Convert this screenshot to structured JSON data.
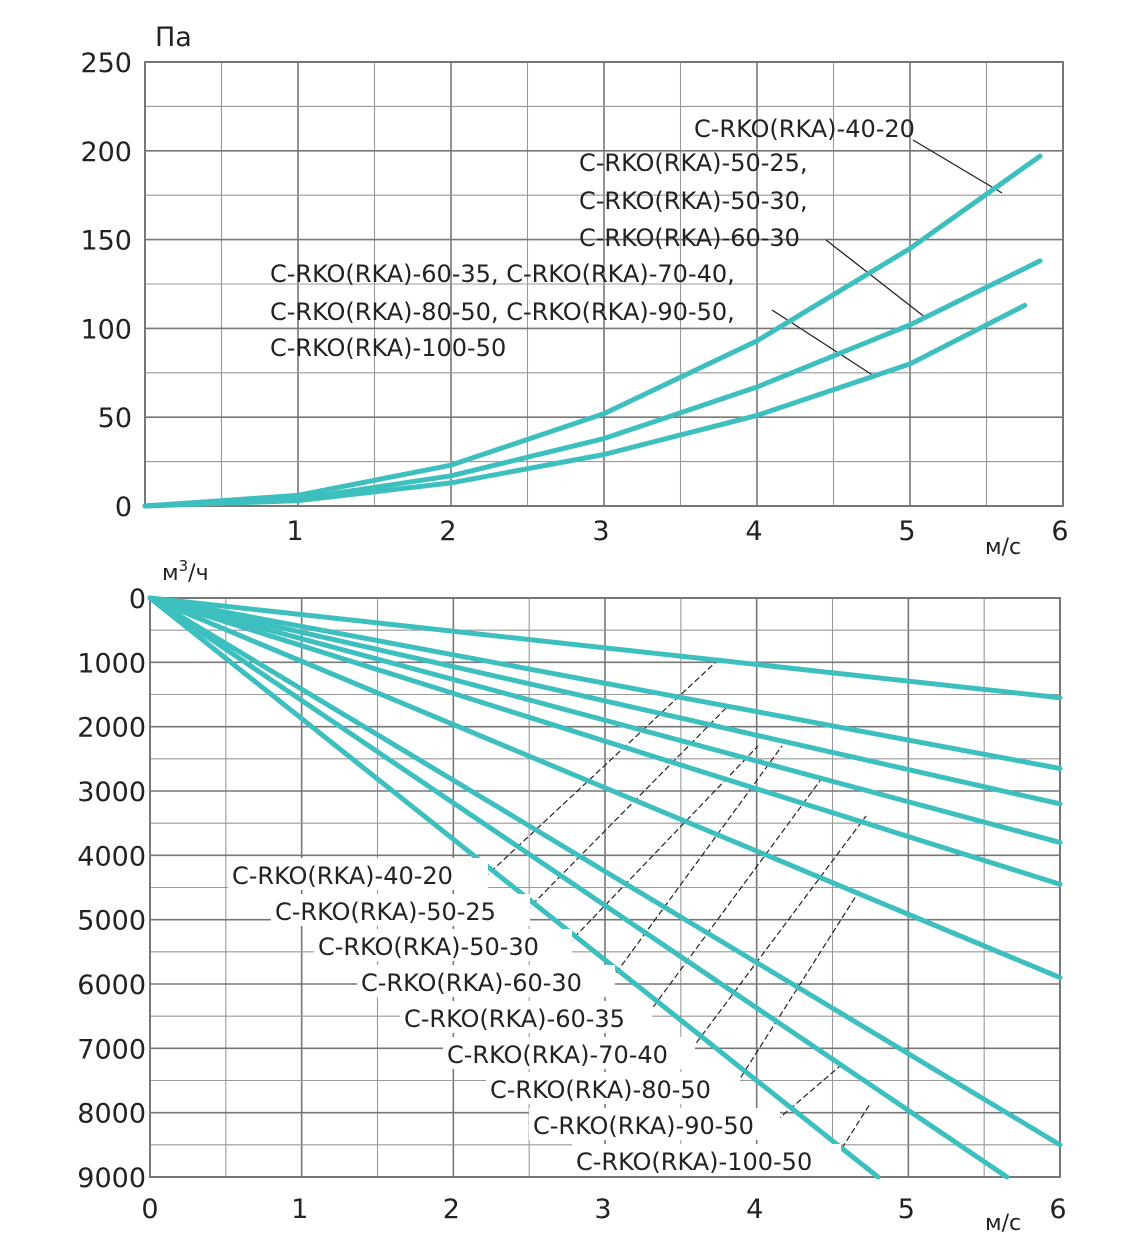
{
  "chart_data": [
    {
      "type": "line",
      "title": "",
      "xlabel": "м/с",
      "ylabel": "Па",
      "xlim": [
        0,
        6
      ],
      "ylim": [
        0,
        250
      ],
      "xticks": [
        "1",
        "2",
        "3",
        "4",
        "5",
        "6"
      ],
      "yticks": [
        "0",
        "50",
        "100",
        "150",
        "200",
        "250"
      ],
      "grid": true,
      "line_color": "#3dbfbf",
      "series": [
        {
          "x": [
            0,
            1,
            2,
            3,
            4,
            5,
            5.85
          ],
          "y": [
            0,
            6,
            23,
            52,
            93,
            145,
            197
          ]
        },
        {
          "x": [
            0,
            1,
            2,
            3,
            4,
            5,
            5.85
          ],
          "y": [
            0,
            4,
            17,
            38,
            67,
            102,
            138
          ]
        },
        {
          "x": [
            0,
            1,
            2,
            3,
            4,
            5,
            5.75
          ],
          "y": [
            0,
            3,
            13,
            29,
            51,
            80,
            113
          ]
        }
      ],
      "annotations": [
        {
          "text": "C-RKO(RKA)-40-20"
        },
        {
          "text": "C-RKO(RKA)-50-25,"
        },
        {
          "text": "C-RKO(RKA)-50-30,"
        },
        {
          "text": "C-RKO(RKA)-60-30"
        },
        {
          "text": "C-RKO(RKA)-60-35, C-RKO(RKA)-70-40,"
        },
        {
          "text": "C-RKO(RKA)-80-50, C-RKO(RKA)-90-50,"
        },
        {
          "text": "C-RKO(RKA)-100-50"
        }
      ]
    },
    {
      "type": "line",
      "title": "",
      "xlabel": "м/с",
      "ylabel": "м3/ч",
      "ylabel_base": "м",
      "ylabel_sup": "3",
      "ylabel_tail": "/ч",
      "xlim": [
        0,
        6
      ],
      "ylim": [
        0,
        9000
      ],
      "xticks": [
        "0",
        "1",
        "2",
        "3",
        "4",
        "5",
        "6"
      ],
      "yticks": [
        "0",
        "1000",
        "2000",
        "3000",
        "4000",
        "5000",
        "6000",
        "7000",
        "8000",
        "9000"
      ],
      "grid": true,
      "line_color": "#3dbfbf",
      "series": [
        {
          "name": "C-RKO(RKA)-40-20",
          "x": [
            0,
            6
          ],
          "y": [
            0,
            1550
          ]
        },
        {
          "name": "C-RKO(RKA)-50-25",
          "x": [
            0,
            6
          ],
          "y": [
            0,
            2650
          ]
        },
        {
          "name": "C-RKO(RKA)-50-30",
          "x": [
            0,
            6
          ],
          "y": [
            0,
            3200
          ]
        },
        {
          "name": "C-RKO(RKA)-60-30",
          "x": [
            0,
            6
          ],
          "y": [
            0,
            3800
          ]
        },
        {
          "name": "C-RKO(RKA)-60-35",
          "x": [
            0,
            6
          ],
          "y": [
            0,
            4450
          ]
        },
        {
          "name": "C-RKO(RKA)-70-40",
          "x": [
            0,
            6
          ],
          "y": [
            0,
            5900
          ]
        },
        {
          "name": "C-RKO(RKA)-80-50",
          "x": [
            0,
            6
          ],
          "y": [
            0,
            8500
          ]
        },
        {
          "name": "C-RKO(RKA)-90-50",
          "x": [
            0,
            5.65
          ],
          "y": [
            0,
            9000
          ]
        },
        {
          "name": "C-RKO(RKA)-100-50",
          "x": [
            0,
            4.8
          ],
          "y": [
            0,
            9000
          ]
        }
      ]
    }
  ]
}
